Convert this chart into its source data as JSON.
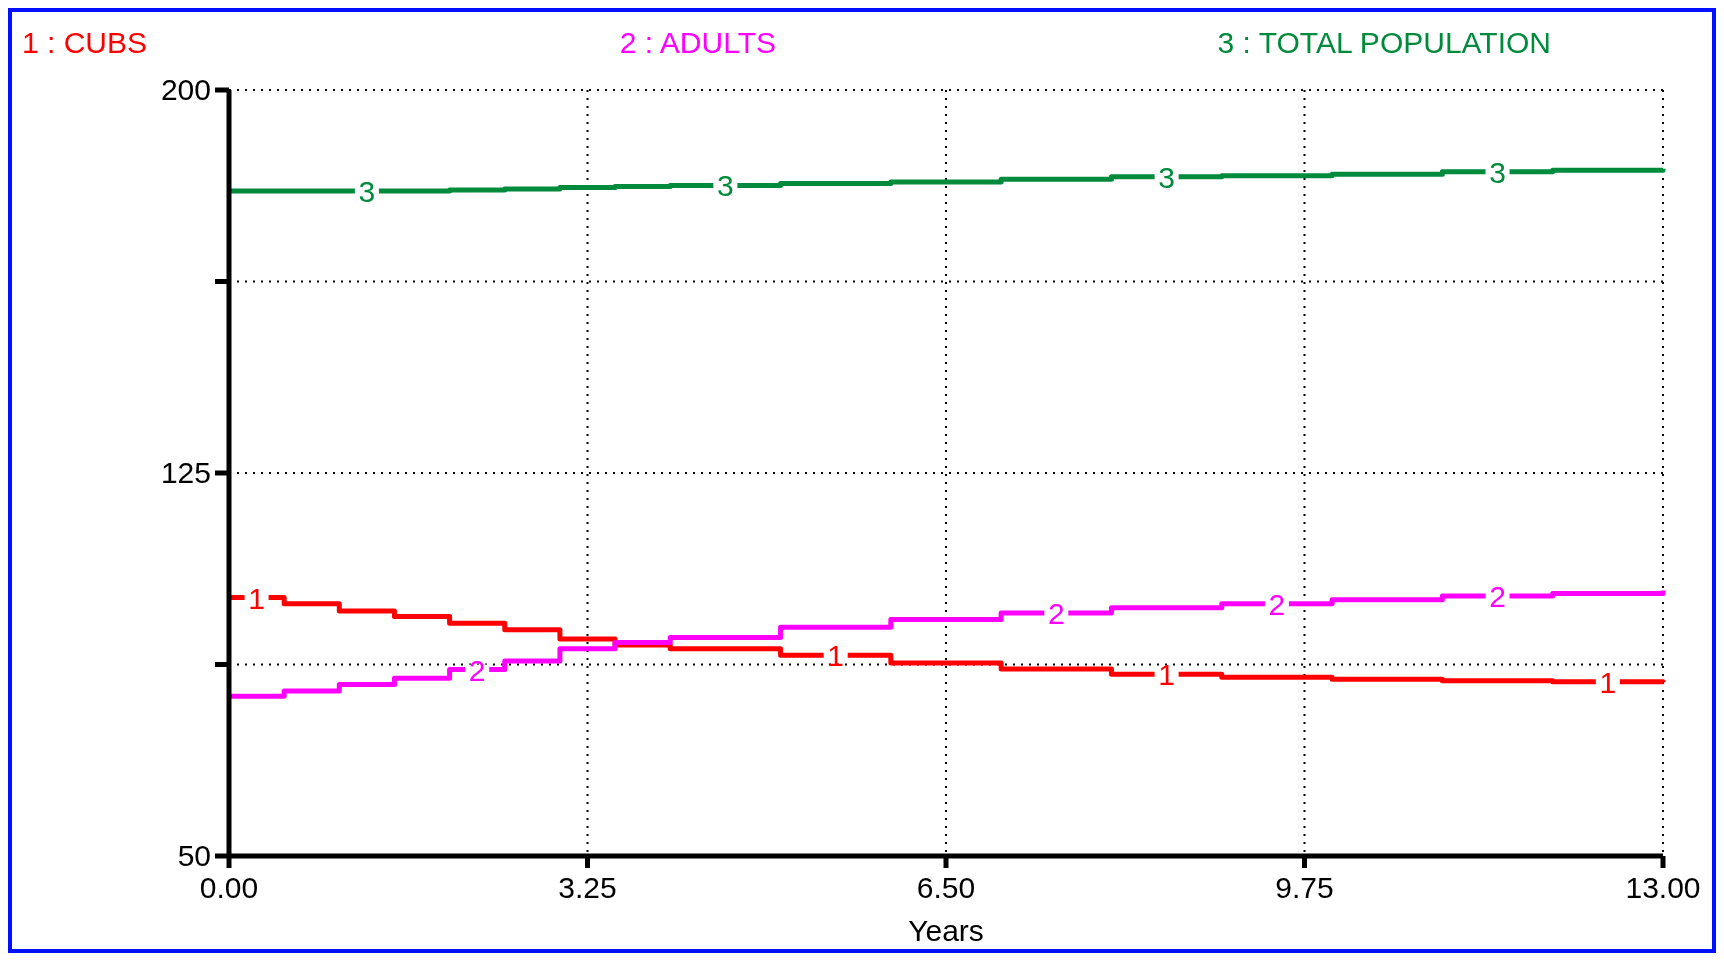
{
  "chart_data": {
    "type": "step",
    "xlabel": "Years",
    "x": [
      0,
      0.5,
      1,
      1.5,
      2,
      2.5,
      3,
      3.5,
      4,
      5,
      6,
      7,
      8,
      9,
      10,
      11,
      12,
      13
    ],
    "series": [
      {
        "name": "1 : CUBS",
        "color": "#ff0000",
        "values": [
          100.6,
          99.4,
          98.0,
          96.9,
          95.6,
          94.3,
          92.5,
          91.3,
          90.6,
          89.3,
          87.8,
          86.6,
          85.6,
          85.0,
          84.6,
          84.3,
          84.1,
          84.0
        ]
      },
      {
        "name": "2 : ADULTS",
        "color": "#ff00ff",
        "values": [
          81.3,
          82.3,
          83.6,
          84.8,
          86.5,
          88.2,
          90.6,
          91.8,
          92.8,
          94.8,
          96.3,
          97.6,
          98.6,
          99.4,
          100.2,
          100.9,
          101.4,
          102.0
        ]
      },
      {
        "name": "3 : TOTAL POPULATION",
        "color": "#008a3c",
        "values": [
          180.2,
          180.2,
          180.2,
          180.2,
          180.4,
          180.6,
          180.9,
          181.1,
          181.3,
          181.7,
          182.0,
          182.5,
          183.0,
          183.2,
          183.5,
          184.0,
          184.3,
          184.6
        ]
      }
    ],
    "xlim": [
      0,
      13
    ],
    "xticks": [
      {
        "value": 0,
        "label": "0.00"
      },
      {
        "value": 3.25,
        "label": "3.25"
      },
      {
        "value": 6.5,
        "label": "6.50"
      },
      {
        "value": 9.75,
        "label": "9.75"
      },
      {
        "value": 13,
        "label": "13.00"
      }
    ],
    "ylim": [
      50,
      200
    ],
    "yticks": [
      50,
      {
        "value": 87.5,
        "label": null
      },
      125,
      {
        "value": 162.5,
        "label": null
      },
      200
    ],
    "annotations": [
      {
        "text": "1",
        "x": 0.25,
        "y": 100.6
      },
      {
        "text": "1",
        "x": 5.5,
        "y": 89.3
      },
      {
        "text": "1",
        "x": 8.5,
        "y": 85.6
      },
      {
        "text": "1",
        "x": 12.5,
        "y": 84.1
      },
      {
        "text": "2",
        "x": 2.25,
        "y": 86.5
      },
      {
        "text": "2",
        "x": 7.5,
        "y": 97.6
      },
      {
        "text": "2",
        "x": 9.5,
        "y": 99.4
      },
      {
        "text": "2",
        "x": 11.5,
        "y": 100.9
      },
      {
        "text": "3",
        "x": 1.25,
        "y": 180.2
      },
      {
        "text": "3",
        "x": 4.5,
        "y": 181.3
      },
      {
        "text": "3",
        "x": 8.5,
        "y": 183.0
      },
      {
        "text": "3",
        "x": 11.5,
        "y": 184.0
      }
    ],
    "grid": true,
    "line_style": "solid"
  }
}
